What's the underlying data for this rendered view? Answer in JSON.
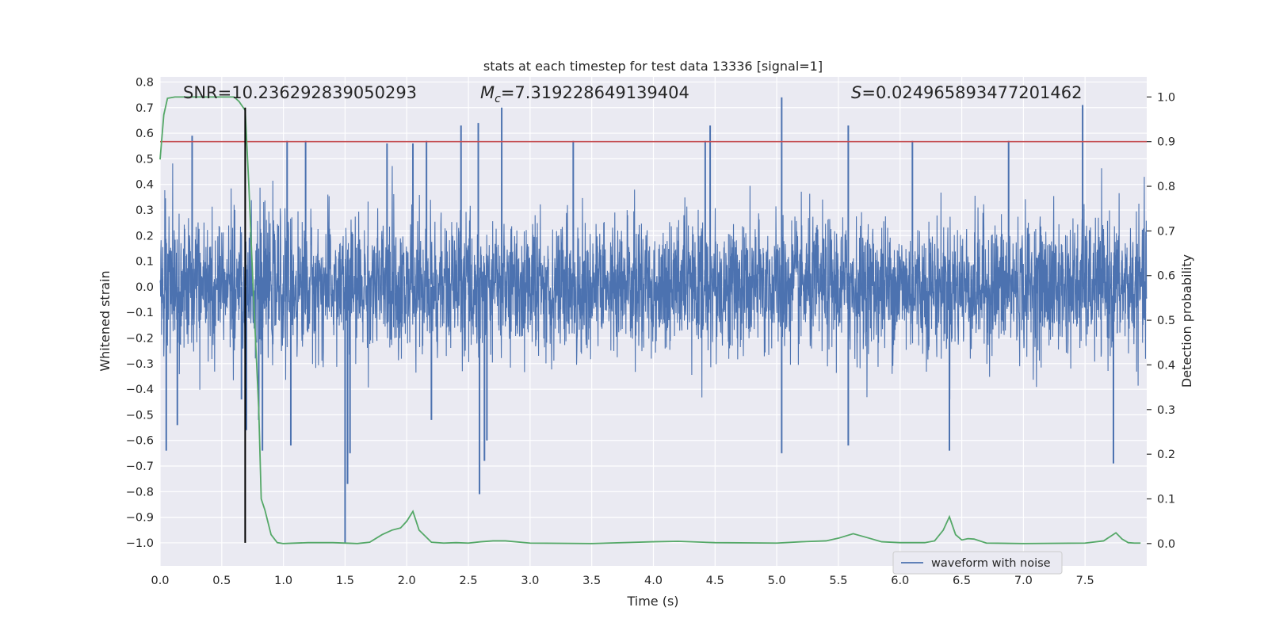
{
  "chart_data": {
    "type": "line",
    "title": "stats at each timestep for test data 13336 [signal=1]",
    "xlabel": "Time (s)",
    "ylabel_left": "Whitened strain",
    "ylabel_right": "Detection probability",
    "xlim": [
      0.0,
      8.0
    ],
    "ylim_left": [
      -1.09,
      0.82
    ],
    "ylim_right": [
      -0.05,
      1.045
    ],
    "x_ticks": [
      0.0,
      0.5,
      1.0,
      1.5,
      2.0,
      2.5,
      3.0,
      3.5,
      4.0,
      4.5,
      5.0,
      5.5,
      6.0,
      6.5,
      7.0,
      7.5
    ],
    "x_tick_labels": [
      "0.0",
      "0.5",
      "1.0",
      "1.5",
      "2.0",
      "2.5",
      "3.0",
      "3.5",
      "4.0",
      "4.5",
      "5.0",
      "5.5",
      "6.0",
      "6.5",
      "7.0",
      "7.5"
    ],
    "y_left_ticks": [
      0.8,
      0.7,
      0.6,
      0.5,
      0.4,
      0.3,
      0.2,
      0.1,
      0.0,
      -0.1,
      -0.2,
      -0.3,
      -0.4,
      -0.5,
      -0.6,
      -0.7,
      -0.8,
      -0.9,
      -1.0
    ],
    "y_left_tick_labels": [
      "0.8",
      "0.7",
      "0.6",
      "0.5",
      "0.4",
      "0.3",
      "0.2",
      "0.1",
      "0.0",
      "−0.1",
      "−0.2",
      "−0.3",
      "−0.4",
      "−0.5",
      "−0.6",
      "−0.7",
      "−0.8",
      "−0.9",
      "−1.0"
    ],
    "y_right_ticks": [
      1.0,
      0.9,
      0.8,
      0.7,
      0.6,
      0.5,
      0.4,
      0.3,
      0.2,
      0.1,
      0.0
    ],
    "y_right_tick_labels": [
      "1.0",
      "0.9",
      "0.8",
      "0.7",
      "0.6",
      "0.5",
      "0.4",
      "0.3",
      "0.2",
      "0.1",
      "0.0"
    ],
    "grid": true,
    "legend": {
      "position": "lower-right",
      "entries": [
        "waveform with noise"
      ]
    },
    "annotations": {
      "snr_label": "SNR=10.236292839050293",
      "mc_symbol": "M",
      "mc_subscript": "c",
      "mc_value": "=7.319228649139404",
      "s_symbol": "S",
      "s_value": "=0.024965893477201462"
    },
    "series": [
      {
        "name": "waveform with noise",
        "axis": "left",
        "color": "#4c72b0",
        "render": "dense-noise",
        "typical_envelope": [
          -0.3,
          0.35
        ],
        "spikes": [
          {
            "x": 0.26,
            "y": 0.59
          },
          {
            "x": 0.05,
            "y": -0.64
          },
          {
            "x": 0.14,
            "y": -0.54
          },
          {
            "x": 0.66,
            "y": -0.44
          },
          {
            "x": 0.7,
            "y": -0.56
          },
          {
            "x": 0.8,
            "y": -0.52
          },
          {
            "x": 0.83,
            "y": -0.64
          },
          {
            "x": 1.03,
            "y": 0.57
          },
          {
            "x": 1.06,
            "y": -0.62
          },
          {
            "x": 1.18,
            "y": 0.57
          },
          {
            "x": 1.5,
            "y": -1.0
          },
          {
            "x": 1.52,
            "y": -0.77
          },
          {
            "x": 1.54,
            "y": -0.65
          },
          {
            "x": 1.84,
            "y": 0.56
          },
          {
            "x": 2.05,
            "y": 0.56
          },
          {
            "x": 2.16,
            "y": 0.57
          },
          {
            "x": 2.2,
            "y": -0.52
          },
          {
            "x": 2.44,
            "y": 0.63
          },
          {
            "x": 2.58,
            "y": 0.64
          },
          {
            "x": 2.59,
            "y": -0.81
          },
          {
            "x": 2.63,
            "y": -0.68
          },
          {
            "x": 2.65,
            "y": -0.6
          },
          {
            "x": 2.77,
            "y": 0.7
          },
          {
            "x": 3.35,
            "y": 0.57
          },
          {
            "x": 4.42,
            "y": 0.57
          },
          {
            "x": 4.46,
            "y": 0.63
          },
          {
            "x": 5.04,
            "y": 0.74
          },
          {
            "x": 5.04,
            "y": -0.65
          },
          {
            "x": 5.58,
            "y": 0.63
          },
          {
            "x": 5.58,
            "y": -0.62
          },
          {
            "x": 6.1,
            "y": 0.57
          },
          {
            "x": 6.4,
            "y": -0.64
          },
          {
            "x": 6.88,
            "y": 0.57
          },
          {
            "x": 7.48,
            "y": 0.71
          },
          {
            "x": 7.73,
            "y": -0.69
          }
        ]
      },
      {
        "name": "",
        "axis": "right",
        "color": "#55a868",
        "x": [
          0.0,
          0.03,
          0.06,
          0.12,
          0.2,
          0.3,
          0.4,
          0.5,
          0.6,
          0.64,
          0.69,
          0.72,
          0.75,
          0.8,
          0.82,
          0.85,
          0.9,
          0.95,
          1.0,
          1.2,
          1.4,
          1.6,
          1.7,
          1.8,
          1.88,
          1.95,
          2.0,
          2.05,
          2.1,
          2.2,
          2.3,
          2.4,
          2.5,
          2.6,
          2.7,
          2.8,
          3.0,
          3.5,
          4.0,
          4.2,
          4.4,
          4.5,
          5.0,
          5.2,
          5.4,
          5.5,
          5.62,
          5.75,
          5.85,
          6.0,
          6.2,
          6.28,
          6.35,
          6.4,
          6.45,
          6.5,
          6.55,
          6.6,
          6.7,
          7.0,
          7.5,
          7.65,
          7.7,
          7.75,
          7.8,
          7.85,
          7.9,
          7.95
        ],
        "y": [
          0.86,
          0.96,
          0.997,
          1.0,
          1.0,
          1.0,
          1.0,
          1.0,
          1.0,
          0.99,
          0.97,
          0.8,
          0.6,
          0.3,
          0.1,
          0.075,
          0.02,
          0.002,
          0.0,
          0.002,
          0.002,
          0.0,
          0.003,
          0.02,
          0.03,
          0.035,
          0.05,
          0.072,
          0.03,
          0.003,
          0.001,
          0.002,
          0.001,
          0.004,
          0.006,
          0.006,
          0.001,
          0.0,
          0.004,
          0.005,
          0.003,
          0.002,
          0.001,
          0.004,
          0.006,
          0.012,
          0.022,
          0.012,
          0.004,
          0.002,
          0.002,
          0.006,
          0.03,
          0.06,
          0.02,
          0.008,
          0.011,
          0.01,
          0.001,
          0.0,
          0.001,
          0.006,
          0.015,
          0.024,
          0.01,
          0.002,
          0.001,
          0.001
        ]
      }
    ],
    "horizontal_lines_right_axis": [
      {
        "value": 0.9,
        "color": "#c44e52"
      }
    ],
    "vertical_lines": [
      {
        "x": 0.69,
        "y_from": -1.0,
        "y_to": 0.7,
        "color": "#000000",
        "axis": "left"
      }
    ]
  },
  "colors": {
    "plot_background": "#eaeaf2",
    "grid": "#ffffff",
    "strain": "#4c72b0",
    "probability": "#55a868",
    "threshold": "#c44e52",
    "marker": "#000000",
    "text": "#262626"
  }
}
